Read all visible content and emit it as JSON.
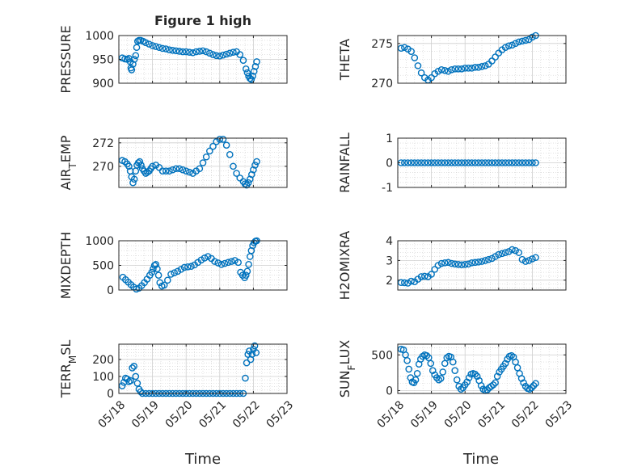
{
  "figure": {
    "title": "Figure 1 high",
    "xlabel": "Time",
    "x_tick_labels": [
      "05/18",
      "05/19",
      "05/20",
      "05/21",
      "05/22",
      "05/23"
    ],
    "marker_color": "#0072BD",
    "grid_color": "#CFCFCF",
    "axes_color": "#262626"
  },
  "chart_data": [
    {
      "type": "scatter",
      "ylabel": "PRESSURE",
      "ylim": [
        900,
        1000
      ],
      "yticks": [
        900,
        950,
        1000
      ],
      "xlim": [
        0,
        5
      ],
      "grid": true,
      "x": [
        0.1,
        0.18,
        0.25,
        0.3,
        0.34,
        0.36,
        0.38,
        0.42,
        0.46,
        0.5,
        0.53,
        0.56,
        0.6,
        0.65,
        0.72,
        0.8,
        0.9,
        1.0,
        1.1,
        1.2,
        1.3,
        1.4,
        1.5,
        1.6,
        1.7,
        1.8,
        1.9,
        2.0,
        2.1,
        2.2,
        2.3,
        2.4,
        2.5,
        2.6,
        2.7,
        2.8,
        2.9,
        3.0,
        3.1,
        3.2,
        3.3,
        3.4,
        3.5,
        3.6,
        3.7,
        3.78,
        3.82,
        3.86,
        3.9,
        3.94,
        3.98,
        4.02,
        4.06,
        4.1
      ],
      "y": [
        953,
        951,
        950,
        952,
        945,
        932,
        928,
        940,
        950,
        958,
        975,
        988,
        990,
        990,
        988,
        985,
        982,
        979,
        977,
        975,
        973,
        972,
        970,
        969,
        968,
        967,
        966,
        966,
        965,
        964,
        966,
        967,
        968,
        966,
        963,
        960,
        958,
        957,
        959,
        961,
        963,
        965,
        966,
        960,
        948,
        930,
        922,
        915,
        910,
        908,
        915,
        925,
        935,
        945
      ]
    },
    {
      "type": "scatter",
      "ylabel": "THETA",
      "ylim": [
        270,
        276
      ],
      "yticks": [
        270,
        275
      ],
      "xlim": [
        0,
        5
      ],
      "grid": true,
      "x": [
        0.1,
        0.2,
        0.3,
        0.4,
        0.5,
        0.6,
        0.7,
        0.8,
        0.9,
        1.0,
        1.1,
        1.2,
        1.3,
        1.4,
        1.5,
        1.6,
        1.7,
        1.8,
        1.9,
        2.0,
        2.1,
        2.2,
        2.3,
        2.4,
        2.5,
        2.6,
        2.7,
        2.8,
        2.9,
        3.0,
        3.1,
        3.2,
        3.3,
        3.4,
        3.5,
        3.6,
        3.7,
        3.8,
        3.9,
        4.0,
        4.1
      ],
      "y": [
        274.4,
        274.5,
        274.3,
        274.0,
        273.2,
        272.2,
        271.3,
        270.7,
        270.4,
        270.7,
        271.2,
        271.5,
        271.7,
        271.6,
        271.5,
        271.7,
        271.8,
        271.8,
        271.8,
        271.9,
        271.9,
        271.9,
        272.0,
        272.0,
        272.1,
        272.2,
        272.4,
        272.8,
        273.3,
        273.8,
        274.2,
        274.5,
        274.7,
        274.8,
        275.0,
        275.2,
        275.3,
        275.4,
        275.5,
        275.8,
        276.0
      ]
    },
    {
      "type": "scatter",
      "ylabel": "AIR_TEMP",
      "ylim": [
        268.2,
        272.4
      ],
      "yticks": [
        270,
        272
      ],
      "xlim": [
        0,
        5
      ],
      "grid": true,
      "x": [
        0.1,
        0.18,
        0.25,
        0.3,
        0.34,
        0.38,
        0.42,
        0.46,
        0.5,
        0.54,
        0.58,
        0.62,
        0.66,
        0.7,
        0.75,
        0.8,
        0.85,
        0.9,
        0.95,
        1.0,
        1.1,
        1.2,
        1.3,
        1.4,
        1.5,
        1.6,
        1.7,
        1.8,
        1.9,
        2.0,
        2.1,
        2.2,
        2.3,
        2.4,
        2.5,
        2.6,
        2.7,
        2.8,
        2.9,
        3.0,
        3.1,
        3.2,
        3.3,
        3.4,
        3.5,
        3.6,
        3.7,
        3.75,
        3.8,
        3.85,
        3.9,
        3.95,
        4.0,
        4.05,
        4.1
      ],
      "y": [
        270.5,
        270.4,
        270.2,
        270.0,
        269.6,
        269.1,
        268.6,
        268.9,
        269.6,
        270.1,
        270.3,
        270.4,
        270.1,
        269.8,
        269.6,
        269.4,
        269.5,
        269.6,
        269.8,
        270.0,
        270.1,
        269.9,
        269.6,
        269.6,
        269.6,
        269.7,
        269.8,
        269.8,
        269.7,
        269.6,
        269.5,
        269.4,
        269.6,
        269.8,
        270.3,
        270.8,
        271.3,
        271.7,
        272.1,
        272.3,
        272.3,
        271.8,
        271.0,
        270.0,
        269.4,
        269.0,
        268.7,
        268.5,
        268.4,
        268.6,
        268.9,
        269.3,
        269.7,
        270.1,
        270.4
      ]
    },
    {
      "type": "scatter",
      "ylabel": "RAINFALL",
      "ylim": [
        -1,
        1
      ],
      "yticks": [
        -1,
        0,
        1
      ],
      "xlim": [
        0,
        5
      ],
      "grid": true,
      "x": [
        0.1,
        0.2,
        0.3,
        0.4,
        0.5,
        0.6,
        0.7,
        0.8,
        0.9,
        1.0,
        1.1,
        1.2,
        1.3,
        1.4,
        1.5,
        1.6,
        1.7,
        1.8,
        1.9,
        2.0,
        2.1,
        2.2,
        2.3,
        2.4,
        2.5,
        2.6,
        2.7,
        2.8,
        2.9,
        3.0,
        3.1,
        3.2,
        3.3,
        3.4,
        3.5,
        3.6,
        3.7,
        3.8,
        3.9,
        4.0,
        4.1
      ],
      "y": [
        0,
        0,
        0,
        0,
        0,
        0,
        0,
        0,
        0,
        0,
        0,
        0,
        0,
        0,
        0,
        0,
        0,
        0,
        0,
        0,
        0,
        0,
        0,
        0,
        0,
        0,
        0,
        0,
        0,
        0,
        0,
        0,
        0,
        0,
        0,
        0,
        0,
        0,
        0,
        0,
        0
      ]
    },
    {
      "type": "scatter",
      "ylabel": "MIXDEPTH",
      "ylim": [
        0,
        1000
      ],
      "yticks": [
        0,
        500,
        1000
      ],
      "xlim": [
        0,
        5
      ],
      "grid": true,
      "x": [
        0.12,
        0.2,
        0.28,
        0.36,
        0.44,
        0.52,
        0.6,
        0.68,
        0.76,
        0.84,
        0.92,
        0.98,
        1.02,
        1.06,
        1.1,
        1.14,
        1.18,
        1.22,
        1.28,
        1.35,
        1.45,
        1.55,
        1.65,
        1.75,
        1.85,
        1.95,
        2.05,
        2.15,
        2.25,
        2.35,
        2.45,
        2.55,
        2.65,
        2.75,
        2.85,
        2.95,
        3.05,
        3.15,
        3.25,
        3.35,
        3.45,
        3.55,
        3.62,
        3.68,
        3.74,
        3.78,
        3.82,
        3.86,
        3.9,
        3.94,
        3.98,
        4.02,
        4.06,
        4.1
      ],
      "y": [
        260,
        210,
        160,
        110,
        60,
        20,
        40,
        90,
        150,
        220,
        300,
        360,
        430,
        500,
        520,
        430,
        300,
        150,
        80,
        100,
        200,
        320,
        350,
        380,
        420,
        460,
        470,
        480,
        510,
        560,
        610,
        650,
        680,
        640,
        580,
        550,
        520,
        540,
        560,
        580,
        600,
        560,
        360,
        300,
        250,
        300,
        380,
        520,
        680,
        800,
        900,
        960,
        990,
        1000
      ]
    },
    {
      "type": "scatter",
      "ylabel": "H2OMIXRA",
      "ylim": [
        1.5,
        4
      ],
      "yticks": [
        2,
        3,
        4
      ],
      "xlim": [
        0,
        5
      ],
      "grid": true,
      "x": [
        0.1,
        0.2,
        0.3,
        0.4,
        0.5,
        0.6,
        0.7,
        0.8,
        0.9,
        1.0,
        1.1,
        1.2,
        1.3,
        1.4,
        1.5,
        1.6,
        1.7,
        1.8,
        1.9,
        2.0,
        2.1,
        2.2,
        2.3,
        2.4,
        2.5,
        2.6,
        2.7,
        2.8,
        2.9,
        3.0,
        3.1,
        3.2,
        3.3,
        3.4,
        3.5,
        3.6,
        3.7,
        3.8,
        3.9,
        4.0,
        4.1
      ],
      "y": [
        1.88,
        1.87,
        1.85,
        1.95,
        1.92,
        2.05,
        2.18,
        2.2,
        2.18,
        2.3,
        2.55,
        2.75,
        2.85,
        2.88,
        2.9,
        2.85,
        2.82,
        2.8,
        2.78,
        2.8,
        2.82,
        2.88,
        2.9,
        2.92,
        2.95,
        3.0,
        3.05,
        3.1,
        3.2,
        3.3,
        3.35,
        3.4,
        3.45,
        3.55,
        3.5,
        3.4,
        3.05,
        2.95,
        3.0,
        3.08,
        3.15
      ]
    },
    {
      "type": "scatter",
      "ylabel": "TERR_MSL",
      "ylim": [
        0,
        290
      ],
      "yticks": [
        0,
        100,
        200
      ],
      "xlim": [
        0,
        5
      ],
      "grid": true,
      "x": [
        0.1,
        0.15,
        0.2,
        0.25,
        0.3,
        0.35,
        0.4,
        0.45,
        0.5,
        0.55,
        0.6,
        0.65,
        0.7,
        0.8,
        0.9,
        1.0,
        1.1,
        1.2,
        1.3,
        1.4,
        1.5,
        1.6,
        1.7,
        1.8,
        1.9,
        2.0,
        2.1,
        2.2,
        2.3,
        2.4,
        2.5,
        2.6,
        2.7,
        2.8,
        2.9,
        3.0,
        3.1,
        3.2,
        3.3,
        3.4,
        3.5,
        3.6,
        3.7,
        3.76,
        3.8,
        3.84,
        3.88,
        3.92,
        3.96,
        4.0,
        4.04,
        4.08
      ],
      "y": [
        45,
        65,
        90,
        85,
        70,
        75,
        150,
        160,
        100,
        60,
        25,
        10,
        0,
        0,
        0,
        0,
        0,
        0,
        0,
        0,
        0,
        0,
        0,
        0,
        0,
        0,
        0,
        0,
        0,
        0,
        0,
        0,
        0,
        0,
        0,
        0,
        0,
        0,
        0,
        0,
        0,
        0,
        0,
        90,
        180,
        230,
        250,
        200,
        230,
        260,
        280,
        240
      ]
    },
    {
      "type": "scatter",
      "ylabel": "SUN_FLUX",
      "ylim": [
        -40,
        650
      ],
      "yticks": [
        0,
        500
      ],
      "xlim": [
        0,
        5
      ],
      "grid": true,
      "x": [
        0.1,
        0.17,
        0.23,
        0.28,
        0.33,
        0.38,
        0.43,
        0.48,
        0.53,
        0.58,
        0.63,
        0.68,
        0.74,
        0.8,
        0.86,
        0.92,
        0.98,
        1.04,
        1.1,
        1.16,
        1.22,
        1.28,
        1.34,
        1.4,
        1.46,
        1.52,
        1.58,
        1.64,
        1.7,
        1.76,
        1.82,
        1.88,
        1.94,
        2.0,
        2.06,
        2.12,
        2.18,
        2.24,
        2.3,
        2.36,
        2.42,
        2.48,
        2.54,
        2.6,
        2.66,
        2.72,
        2.78,
        2.84,
        2.9,
        2.96,
        3.02,
        3.08,
        3.14,
        3.2,
        3.26,
        3.32,
        3.38,
        3.44,
        3.5,
        3.56,
        3.62,
        3.68,
        3.74,
        3.8,
        3.86,
        3.92,
        3.98,
        4.04,
        4.1
      ],
      "y": [
        580,
        570,
        500,
        420,
        300,
        180,
        120,
        110,
        150,
        240,
        370,
        440,
        480,
        500,
        490,
        460,
        380,
        280,
        220,
        180,
        150,
        170,
        260,
        380,
        460,
        480,
        470,
        400,
        280,
        150,
        60,
        20,
        40,
        80,
        120,
        180,
        230,
        240,
        230,
        200,
        140,
        70,
        20,
        0,
        10,
        40,
        60,
        80,
        110,
        200,
        260,
        300,
        340,
        380,
        440,
        480,
        490,
        470,
        400,
        320,
        240,
        170,
        110,
        60,
        30,
        20,
        40,
        70,
        100
      ]
    }
  ]
}
